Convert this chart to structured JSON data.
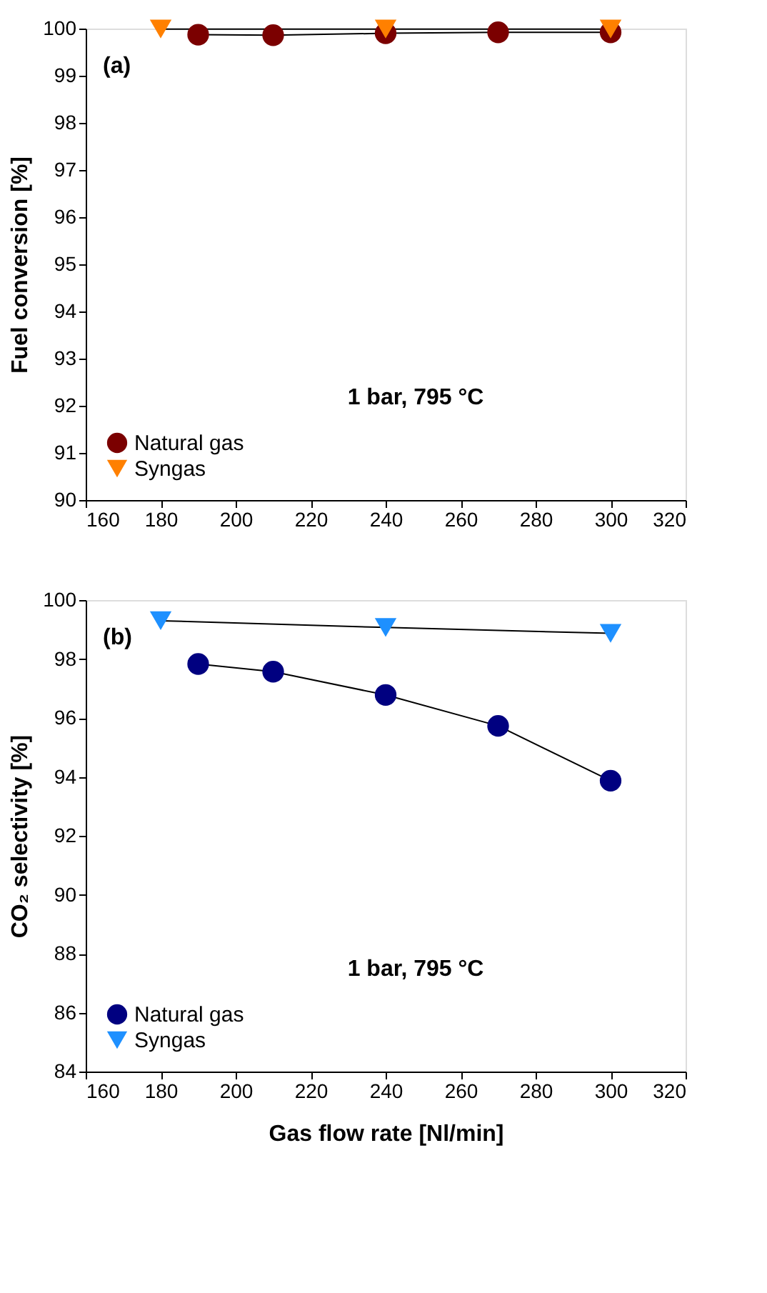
{
  "chart_data": [
    {
      "type": "line",
      "ylabel": "Fuel conversion [%]",
      "annotations": [
        "(a)",
        "1 bar, 795 °C"
      ],
      "xlim": [
        160,
        320
      ],
      "xticks": [
        160,
        180,
        200,
        220,
        240,
        260,
        280,
        300,
        320
      ],
      "ylim": [
        90,
        100
      ],
      "yticks": [
        90,
        91,
        92,
        93,
        94,
        95,
        96,
        97,
        98,
        99,
        100
      ],
      "grid": false,
      "legend": "bottom left",
      "line_style": "solid",
      "series": [
        {
          "name": "Natural gas",
          "color": "#7b0000",
          "marker": "circle",
          "x": [
            190,
            210,
            240,
            270,
            300
          ],
          "values": [
            99.87,
            99.86,
            99.9,
            99.92,
            99.92
          ]
        },
        {
          "name": "Syngas",
          "color": "#ff8000",
          "marker": "triangle",
          "x": [
            180,
            240,
            300
          ],
          "values": [
            99.99,
            99.99,
            99.99
          ]
        }
      ]
    },
    {
      "type": "line",
      "xlabel": "Gas flow rate [Nl/min]",
      "ylabel": "CO₂ selectivity [%]",
      "annotations": [
        "(b)",
        "1 bar, 795 °C"
      ],
      "xlim": [
        160,
        320
      ],
      "xticks": [
        160,
        180,
        200,
        220,
        240,
        260,
        280,
        300,
        320
      ],
      "ylim": [
        84,
        100
      ],
      "yticks": [
        84,
        86,
        88,
        90,
        92,
        94,
        96,
        98,
        100
      ],
      "grid": false,
      "legend": "bottom left",
      "line_style": "solid",
      "series": [
        {
          "name": "Natural gas",
          "color": "#000080",
          "marker": "circle",
          "x": [
            190,
            210,
            240,
            270,
            300
          ],
          "values": [
            97.83,
            97.57,
            96.78,
            95.73,
            93.87
          ]
        },
        {
          "name": "Syngas",
          "color": "#1e90ff",
          "marker": "triangle",
          "x": [
            180,
            240,
            300
          ],
          "values": [
            99.3,
            99.07,
            98.87
          ]
        }
      ]
    }
  ]
}
